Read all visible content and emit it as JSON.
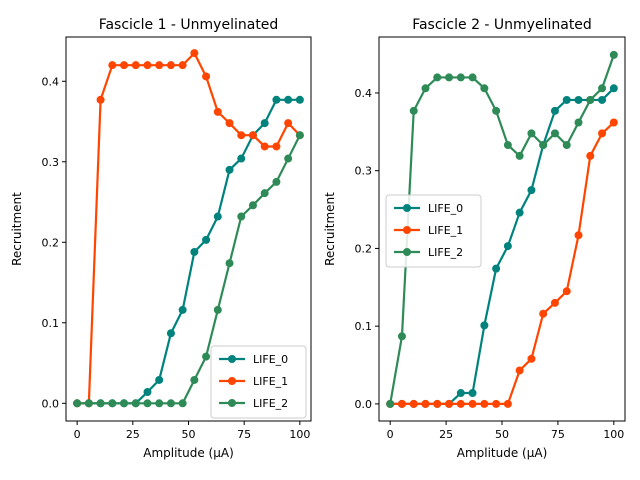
{
  "chart_data": [
    {
      "type": "line",
      "title": "Fascicle 1 - Unmyelinated",
      "xlabel": "Amplitude (μA)",
      "ylabel": "Recruitment",
      "xlim": [
        -5,
        105
      ],
      "ylim": [
        -0.022,
        0.455
      ],
      "xticks": [
        0,
        25,
        50,
        75,
        100
      ],
      "yticks": [
        0.0,
        0.1,
        0.2,
        0.3,
        0.4
      ],
      "ytick_labels": [
        "0.0",
        "0.1",
        "0.2",
        "0.3",
        "0.4"
      ],
      "legend_position": "lower-right",
      "grid": false,
      "x": [
        0,
        5.26,
        10.53,
        15.79,
        21.05,
        26.32,
        31.58,
        36.84,
        42.11,
        47.37,
        52.63,
        57.89,
        63.16,
        68.42,
        73.68,
        78.95,
        84.21,
        89.47,
        94.74,
        100
      ],
      "series": [
        {
          "name": "LIFE_0",
          "color": "#00837d",
          "values": [
            0,
            0,
            0,
            0,
            0,
            0,
            0.014,
            0.029,
            0.087,
            0.116,
            0.188,
            0.203,
            0.232,
            0.29,
            0.304,
            0.333,
            0.348,
            0.377,
            0.377,
            0.377
          ]
        },
        {
          "name": "LIFE_1",
          "color": "#ff4500",
          "values": [
            0,
            0,
            0.377,
            0.42,
            0.42,
            0.42,
            0.42,
            0.42,
            0.42,
            0.42,
            0.435,
            0.406,
            0.362,
            0.348,
            0.333,
            0.333,
            0.319,
            0.319,
            0.348,
            0.333
          ]
        },
        {
          "name": "LIFE_2",
          "color": "#2e8b57",
          "values": [
            0,
            0,
            0,
            0,
            0,
            0,
            0,
            0,
            0,
            0,
            0.029,
            0.058,
            0.116,
            0.174,
            0.232,
            0.246,
            0.261,
            0.275,
            0.304,
            0.333
          ]
        }
      ]
    },
    {
      "type": "line",
      "title": "Fascicle 2 - Unmyelinated",
      "xlabel": "Amplitude (μA)",
      "ylabel": "Recruitment",
      "xlim": [
        -5,
        105
      ],
      "ylim": [
        -0.022,
        0.472
      ],
      "xticks": [
        0,
        25,
        50,
        75,
        100
      ],
      "yticks": [
        0.0,
        0.1,
        0.2,
        0.3,
        0.4
      ],
      "ytick_labels": [
        "0.0",
        "0.1",
        "0.2",
        "0.3",
        "0.4"
      ],
      "legend_position": "center-left",
      "grid": false,
      "x": [
        0,
        5.26,
        10.53,
        15.79,
        21.05,
        26.32,
        31.58,
        36.84,
        42.11,
        47.37,
        52.63,
        57.89,
        63.16,
        68.42,
        73.68,
        78.95,
        84.21,
        89.47,
        94.74,
        100
      ],
      "series": [
        {
          "name": "LIFE_0",
          "color": "#00837d",
          "values": [
            0,
            0,
            0,
            0,
            0,
            0,
            0.014,
            0.014,
            0.101,
            0.174,
            0.203,
            0.246,
            0.275,
            0.333,
            0.377,
            0.391,
            0.391,
            0.391,
            0.391,
            0.406
          ]
        },
        {
          "name": "LIFE_1",
          "color": "#ff4500",
          "values": [
            0,
            0,
            0,
            0,
            0,
            0,
            0,
            0,
            0,
            0,
            0,
            0.043,
            0.058,
            0.116,
            0.13,
            0.145,
            0.217,
            0.319,
            0.348,
            0.362
          ]
        },
        {
          "name": "LIFE_2",
          "color": "#2e8b57",
          "values": [
            0,
            0.087,
            0.377,
            0.406,
            0.42,
            0.42,
            0.42,
            0.42,
            0.406,
            0.377,
            0.333,
            0.319,
            0.348,
            0.333,
            0.348,
            0.333,
            0.362,
            0.391,
            0.406,
            0.449
          ]
        }
      ]
    }
  ]
}
